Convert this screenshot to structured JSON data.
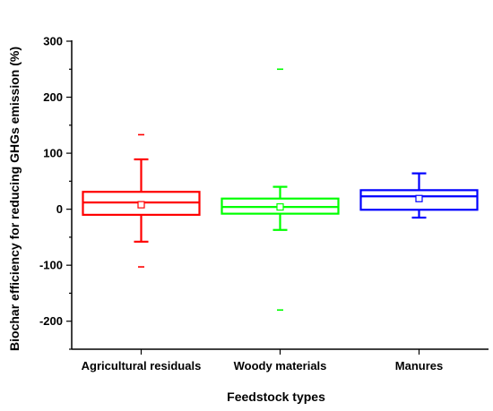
{
  "chart_data": {
    "type": "box",
    "xlabel": "Feedstock types",
    "ylabel": "Biochar efficiency for reducing GHGs emission (%)",
    "ylim": [
      -250,
      300
    ],
    "yticks": [
      -200,
      -100,
      0,
      100,
      200,
      300
    ],
    "yticklabels": [
      "-200",
      "-100",
      "0",
      "100",
      "200",
      "300"
    ],
    "grid": false,
    "categories": [
      "Agricultural residuals",
      "Woody materials",
      "Manures"
    ],
    "series": [
      {
        "category": "Agricultural residuals",
        "color": "#ff0000",
        "q1": -10,
        "median": 12,
        "q3": 31,
        "mean": 8,
        "whisker_low": -58,
        "whisker_high": 89,
        "outliers": [
          133,
          -103
        ]
      },
      {
        "category": "Woody materials",
        "color": "#00ff00",
        "q1": -8,
        "median": 4,
        "q3": 19,
        "mean": 4,
        "whisker_low": -37,
        "whisker_high": 40,
        "outliers": [
          250,
          -180
        ]
      },
      {
        "category": "Manures",
        "color": "#0000ff",
        "q1": -1,
        "median": 23,
        "q3": 34,
        "mean": 19,
        "whisker_low": -15,
        "whisker_high": 64,
        "outliers": []
      }
    ]
  }
}
